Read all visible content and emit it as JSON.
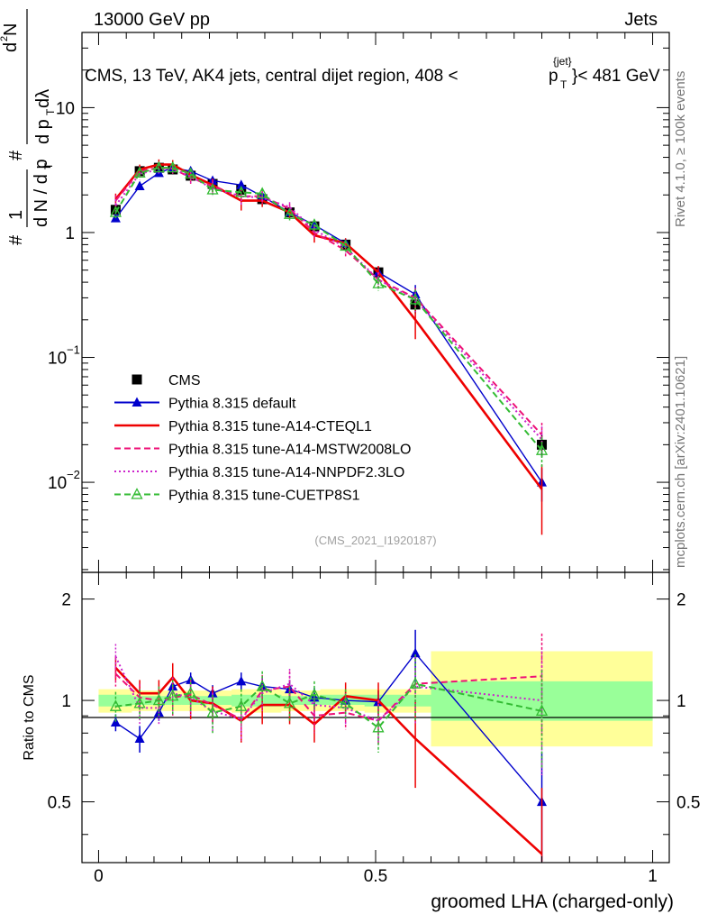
{
  "header": {
    "left": "13000 GeV pp",
    "right": "Jets",
    "title_main": "CMS, 13 TeV, AK4 jets, central dijet region, 408 < ",
    "title_pt": "p",
    "title_pt_sup": "{jet}",
    "title_pt_sub": "T",
    "title_tail": "}< 481 GeV"
  },
  "side": {
    "rivet": "Rivet 4.1.0, ≥ 100k events",
    "mcplots": "mcplots.cern.ch [arXiv:2401.10621]"
  },
  "analysis_id": "(CMS_2021_I1920187)",
  "ylabel_main": {
    "hash1": "#",
    "num1": "1",
    "den1": "d N / d p",
    "den1_sub": "T",
    "hash2": "#",
    "num2": "d",
    "num2_sup": "2",
    "num2_tail": "N",
    "den2": "d p",
    "den2_sub": "T",
    "den2_tail": " dλ"
  },
  "ylabel_ratio": "Ratio to CMS",
  "xlabel": "groomed LHA (charged-only)",
  "ticks": {
    "main_y": [
      {
        "v": 0.01,
        "base": "10",
        "exp": "−2"
      },
      {
        "v": 0.1,
        "base": "10",
        "exp": "−1"
      },
      {
        "v": 1,
        "base": "1",
        "exp": ""
      },
      {
        "v": 10,
        "base": "10",
        "exp": ""
      }
    ],
    "ratio_y": [
      {
        "v": 0.5,
        "label": "0.5"
      },
      {
        "v": 1,
        "label": "1"
      },
      {
        "v": 2,
        "label": "2"
      }
    ],
    "x": [
      {
        "v": 0,
        "label": "0"
      },
      {
        "v": 0.5,
        "label": "0.5"
      },
      {
        "v": 1,
        "label": "1"
      }
    ]
  },
  "chart_data": [
    {
      "type": "line",
      "panel": "main",
      "yscale": "log",
      "xlim": [
        -0.03,
        1.03
      ],
      "ylim": [
        0.0019,
        40
      ],
      "x": [
        0.0308,
        0.0742,
        0.1088,
        0.1338,
        0.1662,
        0.2058,
        0.2574,
        0.2954,
        0.3448,
        0.3894,
        0.4458,
        0.5049,
        0.5717,
        0.8
      ],
      "series": [
        {
          "name": "CMS",
          "color": "#000000",
          "style": "solid",
          "marker": "square",
          "line": false,
          "values": [
            1.52,
            3.1,
            3.3,
            3.2,
            2.85,
            2.45,
            2.2,
            1.85,
            1.45,
            1.12,
            0.8,
            0.48,
            0.265,
            0.02
          ],
          "err": [
            0.15,
            0.2,
            0.25,
            0.2,
            0.2,
            0.2,
            0.2,
            0.15,
            0.12,
            0.1,
            0.07,
            0.05,
            0.04,
            0.004
          ]
        },
        {
          "name": "Pythia 8.315 default",
          "color": "#0000cc",
          "style": "solid",
          "marker": "tri",
          "line": true,
          "values": [
            1.3,
            2.35,
            3.0,
            3.3,
            3.1,
            2.6,
            2.4,
            1.95,
            1.45,
            1.15,
            0.82,
            0.48,
            0.32,
            0.01
          ],
          "err": [
            0.08,
            0.15,
            0.15,
            0.15,
            0.15,
            0.15,
            0.15,
            0.12,
            0.1,
            0.08,
            0.06,
            0.04,
            0.06,
            0.003
          ]
        },
        {
          "name": "Pythia 8.315 tune-A14-CTEQL1",
          "color": "#ee0000",
          "style": "solid",
          "marker": "none",
          "line": true,
          "values": [
            1.85,
            3.2,
            3.5,
            3.5,
            2.9,
            2.4,
            1.8,
            1.8,
            1.45,
            0.95,
            0.82,
            0.48,
            0.2,
            0.0088
          ],
          "err": [
            0.2,
            0.3,
            0.35,
            0.3,
            0.3,
            0.3,
            0.3,
            0.2,
            0.15,
            0.12,
            0.08,
            0.06,
            0.06,
            0.005
          ]
        },
        {
          "name": "Pythia 8.315 tune-A14-MSTW2008LO",
          "color": "#ee1177",
          "style": "dash",
          "marker": "none",
          "line": true,
          "values": [
            1.8,
            3.1,
            3.3,
            3.25,
            2.75,
            2.35,
            1.95,
            1.95,
            1.55,
            1.0,
            0.72,
            0.42,
            0.3,
            0.024
          ],
          "err": [
            0.2,
            0.3,
            0.3,
            0.3,
            0.3,
            0.3,
            0.3,
            0.2,
            0.15,
            0.12,
            0.08,
            0.06,
            0.06,
            0.006
          ]
        },
        {
          "name": "Pythia 8.315 tune-A14-NNPDF2.3LO",
          "color": "#cc22cc",
          "style": "dot",
          "marker": "none",
          "line": true,
          "values": [
            1.65,
            2.95,
            3.2,
            3.25,
            2.8,
            2.25,
            1.95,
            1.9,
            1.6,
            1.05,
            0.76,
            0.42,
            0.29,
            0.022
          ],
          "err": [
            0.2,
            0.3,
            0.3,
            0.3,
            0.3,
            0.3,
            0.3,
            0.2,
            0.15,
            0.12,
            0.08,
            0.06,
            0.06,
            0.006
          ]
        },
        {
          "name": "Pythia 8.315 tune-CUETP8S1",
          "color": "#33bb33",
          "style": "dash",
          "marker": "otri",
          "line": true,
          "values": [
            1.45,
            3.0,
            3.3,
            3.3,
            2.95,
            2.2,
            2.1,
            2.05,
            1.4,
            1.15,
            0.78,
            0.39,
            0.29,
            0.018
          ],
          "err": [
            0.15,
            0.25,
            0.25,
            0.25,
            0.25,
            0.2,
            0.2,
            0.2,
            0.15,
            0.12,
            0.08,
            0.05,
            0.06,
            0.005
          ]
        }
      ]
    },
    {
      "type": "line",
      "panel": "ratio",
      "yscale": "log",
      "xlim": [
        -0.03,
        1.03
      ],
      "ylim": [
        0.33,
        2.4
      ],
      "bands": [
        {
          "x": [
            0.0,
            0.06,
            0.15,
            0.24,
            0.33,
            0.4,
            0.48,
            0.6,
            1.0
          ],
          "lo68": [
            0.96,
            0.97,
            0.97,
            0.96,
            0.97,
            0.97,
            0.96,
            0.87,
            0.87
          ],
          "hi68": [
            1.04,
            1.03,
            1.03,
            1.04,
            1.03,
            1.04,
            1.04,
            1.14,
            1.14
          ],
          "lo95": [
            0.92,
            0.93,
            0.93,
            0.92,
            0.93,
            0.93,
            0.92,
            0.73,
            0.73
          ],
          "hi95": [
            1.08,
            1.07,
            1.07,
            1.08,
            1.07,
            1.08,
            1.08,
            1.4,
            1.4
          ]
        }
      ],
      "x": [
        0.0308,
        0.0742,
        0.1088,
        0.1338,
        0.1662,
        0.2058,
        0.2574,
        0.2954,
        0.3448,
        0.3894,
        0.4458,
        0.5049,
        0.5717,
        0.8
      ],
      "series": [
        {
          "name": "Pythia 8.315 default",
          "color": "#0000cc",
          "style": "solid",
          "marker": "tri",
          "values": [
            0.86,
            0.77,
            0.92,
            1.1,
            1.15,
            1.05,
            1.14,
            1.1,
            1.08,
            1.02,
            1.0,
            0.99,
            1.38,
            0.5
          ],
          "err": [
            0.05,
            0.07,
            0.05,
            0.06,
            0.06,
            0.06,
            0.07,
            0.07,
            0.07,
            0.07,
            0.07,
            0.08,
            0.24,
            0.2
          ]
        },
        {
          "name": "Pythia 8.315 tune-A14-CTEQL1",
          "color": "#ee0000",
          "style": "solid",
          "marker": "none",
          "values": [
            1.25,
            1.05,
            1.05,
            1.17,
            1.0,
            0.98,
            0.87,
            0.97,
            0.97,
            0.85,
            1.03,
            1.0,
            0.77,
            0.35
          ],
          "err": [
            0.1,
            0.1,
            0.1,
            0.12,
            0.12,
            0.12,
            0.12,
            0.12,
            0.12,
            0.1,
            0.1,
            0.13,
            0.22,
            0.2
          ]
        },
        {
          "name": "Pythia 8.315 tune-A14-MSTW2008LO",
          "color": "#ee1177",
          "style": "dash",
          "marker": "none",
          "values": [
            1.2,
            1.02,
            1.0,
            1.02,
            1.04,
            0.97,
            0.88,
            1.07,
            1.1,
            0.9,
            0.92,
            0.87,
            1.12,
            1.18
          ],
          "err": [
            0.1,
            0.1,
            0.1,
            0.12,
            0.12,
            0.12,
            0.12,
            0.12,
            0.12,
            0.1,
            0.1,
            0.13,
            0.25,
            0.4
          ]
        },
        {
          "name": "Pythia 8.315 tune-A14-NNPDF2.3LO",
          "color": "#cc22cc",
          "style": "dot",
          "marker": "none",
          "values": [
            1.35,
            0.95,
            0.95,
            1.05,
            1.02,
            0.93,
            0.88,
            1.05,
            1.12,
            0.97,
            0.95,
            0.87,
            1.1,
            1.0
          ],
          "err": [
            0.12,
            0.1,
            0.1,
            0.12,
            0.12,
            0.12,
            0.12,
            0.12,
            0.12,
            0.1,
            0.1,
            0.13,
            0.25,
            0.4
          ]
        },
        {
          "name": "Pythia 8.315 tune-CUETP8S1",
          "color": "#33bb33",
          "style": "dash",
          "marker": "otri",
          "values": [
            0.96,
            0.98,
            1.0,
            1.03,
            1.05,
            0.92,
            0.96,
            1.1,
            0.98,
            1.04,
            0.98,
            0.83,
            1.12,
            0.93
          ],
          "err": [
            0.1,
            0.1,
            0.1,
            0.12,
            0.12,
            0.12,
            0.12,
            0.12,
            0.12,
            0.1,
            0.1,
            0.13,
            0.25,
            0.3
          ]
        }
      ]
    }
  ]
}
